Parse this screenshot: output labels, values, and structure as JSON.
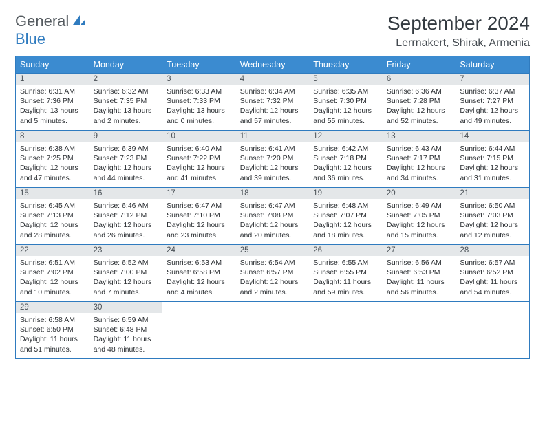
{
  "logo": {
    "word1": "General",
    "word2": "Blue"
  },
  "title": "September 2024",
  "location": "Lerrnakert, Shirak, Armenia",
  "colors": {
    "header_bg": "#3b8bd0",
    "border": "#2f7bbf",
    "daynum_bg": "#e4e7e9",
    "text_dark": "#2b2f33",
    "text_muted": "#4a5157",
    "logo_gray": "#555b60",
    "logo_blue": "#2f7bbf",
    "page_bg": "#ffffff"
  },
  "weekdays": [
    "Sunday",
    "Monday",
    "Tuesday",
    "Wednesday",
    "Thursday",
    "Friday",
    "Saturday"
  ],
  "weeks": [
    [
      {
        "n": "1",
        "sunrise": "Sunrise: 6:31 AM",
        "sunset": "Sunset: 7:36 PM",
        "daylight": "Daylight: 13 hours and 5 minutes."
      },
      {
        "n": "2",
        "sunrise": "Sunrise: 6:32 AM",
        "sunset": "Sunset: 7:35 PM",
        "daylight": "Daylight: 13 hours and 2 minutes."
      },
      {
        "n": "3",
        "sunrise": "Sunrise: 6:33 AM",
        "sunset": "Sunset: 7:33 PM",
        "daylight": "Daylight: 13 hours and 0 minutes."
      },
      {
        "n": "4",
        "sunrise": "Sunrise: 6:34 AM",
        "sunset": "Sunset: 7:32 PM",
        "daylight": "Daylight: 12 hours and 57 minutes."
      },
      {
        "n": "5",
        "sunrise": "Sunrise: 6:35 AM",
        "sunset": "Sunset: 7:30 PM",
        "daylight": "Daylight: 12 hours and 55 minutes."
      },
      {
        "n": "6",
        "sunrise": "Sunrise: 6:36 AM",
        "sunset": "Sunset: 7:28 PM",
        "daylight": "Daylight: 12 hours and 52 minutes."
      },
      {
        "n": "7",
        "sunrise": "Sunrise: 6:37 AM",
        "sunset": "Sunset: 7:27 PM",
        "daylight": "Daylight: 12 hours and 49 minutes."
      }
    ],
    [
      {
        "n": "8",
        "sunrise": "Sunrise: 6:38 AM",
        "sunset": "Sunset: 7:25 PM",
        "daylight": "Daylight: 12 hours and 47 minutes."
      },
      {
        "n": "9",
        "sunrise": "Sunrise: 6:39 AM",
        "sunset": "Sunset: 7:23 PM",
        "daylight": "Daylight: 12 hours and 44 minutes."
      },
      {
        "n": "10",
        "sunrise": "Sunrise: 6:40 AM",
        "sunset": "Sunset: 7:22 PM",
        "daylight": "Daylight: 12 hours and 41 minutes."
      },
      {
        "n": "11",
        "sunrise": "Sunrise: 6:41 AM",
        "sunset": "Sunset: 7:20 PM",
        "daylight": "Daylight: 12 hours and 39 minutes."
      },
      {
        "n": "12",
        "sunrise": "Sunrise: 6:42 AM",
        "sunset": "Sunset: 7:18 PM",
        "daylight": "Daylight: 12 hours and 36 minutes."
      },
      {
        "n": "13",
        "sunrise": "Sunrise: 6:43 AM",
        "sunset": "Sunset: 7:17 PM",
        "daylight": "Daylight: 12 hours and 34 minutes."
      },
      {
        "n": "14",
        "sunrise": "Sunrise: 6:44 AM",
        "sunset": "Sunset: 7:15 PM",
        "daylight": "Daylight: 12 hours and 31 minutes."
      }
    ],
    [
      {
        "n": "15",
        "sunrise": "Sunrise: 6:45 AM",
        "sunset": "Sunset: 7:13 PM",
        "daylight": "Daylight: 12 hours and 28 minutes."
      },
      {
        "n": "16",
        "sunrise": "Sunrise: 6:46 AM",
        "sunset": "Sunset: 7:12 PM",
        "daylight": "Daylight: 12 hours and 26 minutes."
      },
      {
        "n": "17",
        "sunrise": "Sunrise: 6:47 AM",
        "sunset": "Sunset: 7:10 PM",
        "daylight": "Daylight: 12 hours and 23 minutes."
      },
      {
        "n": "18",
        "sunrise": "Sunrise: 6:47 AM",
        "sunset": "Sunset: 7:08 PM",
        "daylight": "Daylight: 12 hours and 20 minutes."
      },
      {
        "n": "19",
        "sunrise": "Sunrise: 6:48 AM",
        "sunset": "Sunset: 7:07 PM",
        "daylight": "Daylight: 12 hours and 18 minutes."
      },
      {
        "n": "20",
        "sunrise": "Sunrise: 6:49 AM",
        "sunset": "Sunset: 7:05 PM",
        "daylight": "Daylight: 12 hours and 15 minutes."
      },
      {
        "n": "21",
        "sunrise": "Sunrise: 6:50 AM",
        "sunset": "Sunset: 7:03 PM",
        "daylight": "Daylight: 12 hours and 12 minutes."
      }
    ],
    [
      {
        "n": "22",
        "sunrise": "Sunrise: 6:51 AM",
        "sunset": "Sunset: 7:02 PM",
        "daylight": "Daylight: 12 hours and 10 minutes."
      },
      {
        "n": "23",
        "sunrise": "Sunrise: 6:52 AM",
        "sunset": "Sunset: 7:00 PM",
        "daylight": "Daylight: 12 hours and 7 minutes."
      },
      {
        "n": "24",
        "sunrise": "Sunrise: 6:53 AM",
        "sunset": "Sunset: 6:58 PM",
        "daylight": "Daylight: 12 hours and 4 minutes."
      },
      {
        "n": "25",
        "sunrise": "Sunrise: 6:54 AM",
        "sunset": "Sunset: 6:57 PM",
        "daylight": "Daylight: 12 hours and 2 minutes."
      },
      {
        "n": "26",
        "sunrise": "Sunrise: 6:55 AM",
        "sunset": "Sunset: 6:55 PM",
        "daylight": "Daylight: 11 hours and 59 minutes."
      },
      {
        "n": "27",
        "sunrise": "Sunrise: 6:56 AM",
        "sunset": "Sunset: 6:53 PM",
        "daylight": "Daylight: 11 hours and 56 minutes."
      },
      {
        "n": "28",
        "sunrise": "Sunrise: 6:57 AM",
        "sunset": "Sunset: 6:52 PM",
        "daylight": "Daylight: 11 hours and 54 minutes."
      }
    ],
    [
      {
        "n": "29",
        "sunrise": "Sunrise: 6:58 AM",
        "sunset": "Sunset: 6:50 PM",
        "daylight": "Daylight: 11 hours and 51 minutes."
      },
      {
        "n": "30",
        "sunrise": "Sunrise: 6:59 AM",
        "sunset": "Sunset: 6:48 PM",
        "daylight": "Daylight: 11 hours and 48 minutes."
      },
      null,
      null,
      null,
      null,
      null
    ]
  ]
}
